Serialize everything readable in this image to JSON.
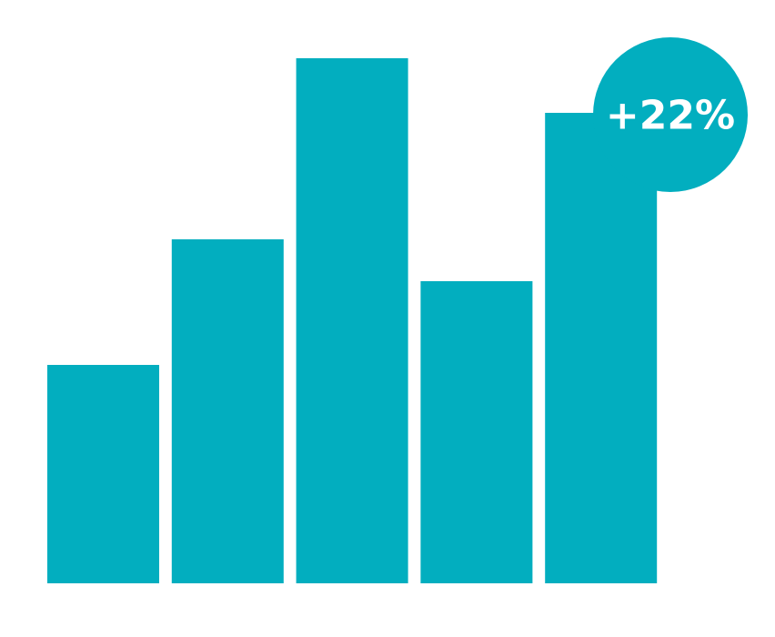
{
  "chart_data": {
    "type": "bar",
    "values": [
      240,
      378,
      577,
      332,
      517
    ],
    "color": "#02aebf",
    "annotation": "+22%"
  }
}
